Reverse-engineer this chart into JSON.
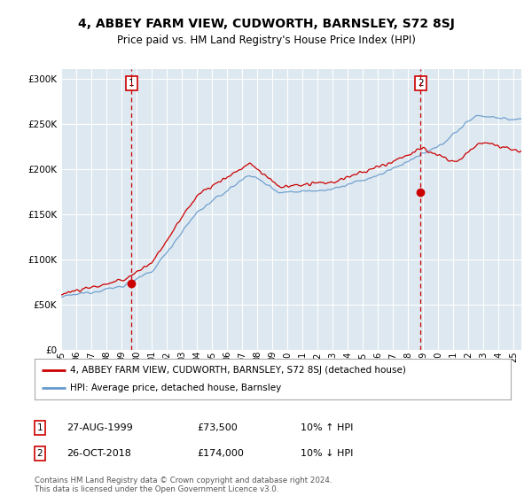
{
  "title": "4, ABBEY FARM VIEW, CUDWORTH, BARNSLEY, S72 8SJ",
  "subtitle": "Price paid vs. HM Land Registry's House Price Index (HPI)",
  "legend_label_red": "4, ABBEY FARM VIEW, CUDWORTH, BARNSLEY, S72 8SJ (detached house)",
  "legend_label_blue": "HPI: Average price, detached house, Barnsley",
  "annotation1_label": "1",
  "annotation1_date": "27-AUG-1999",
  "annotation1_price": "£73,500",
  "annotation1_hpi": "10% ↑ HPI",
  "annotation1_year": 1999.65,
  "annotation1_value": 73500,
  "annotation2_label": "2",
  "annotation2_date": "26-OCT-2018",
  "annotation2_price": "£174,000",
  "annotation2_hpi": "10% ↓ HPI",
  "annotation2_year": 2018.82,
  "annotation2_value": 174000,
  "copyright": "Contains HM Land Registry data © Crown copyright and database right 2024.\nThis data is licensed under the Open Government Licence v3.0.",
  "ylim": [
    0,
    310000
  ],
  "xlim_start": 1995.0,
  "xlim_end": 2025.5,
  "background_color": "#ffffff",
  "plot_bg_color": "#dde8f0",
  "grid_color": "#ffffff",
  "red_color": "#cc0000",
  "blue_color": "#6699cc",
  "title_fontsize": 10,
  "subtitle_fontsize": 8.5
}
